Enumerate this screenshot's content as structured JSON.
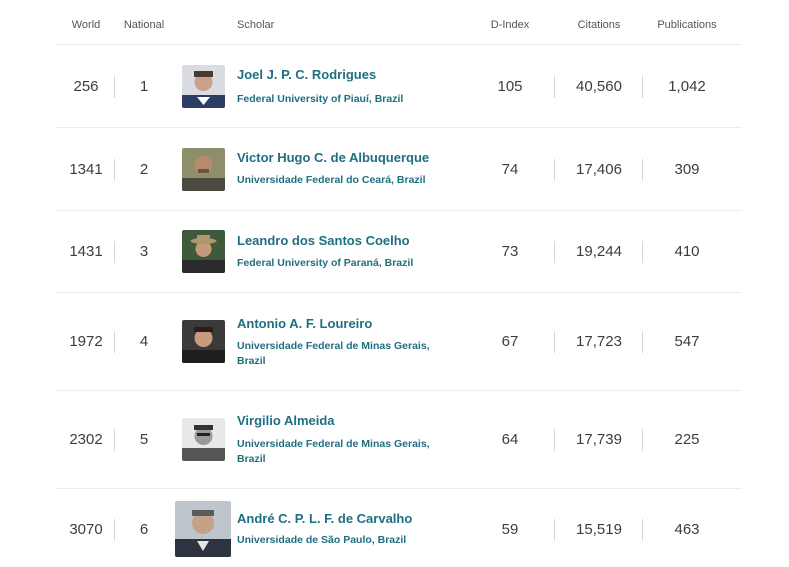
{
  "columns": {
    "world": "World",
    "national": "National",
    "scholar": "Scholar",
    "dindex": "D-Index",
    "citations": "Citations",
    "publications": "Publications"
  },
  "rows": [
    {
      "world": "256",
      "national": "1",
      "name": "Joel J. P. C. Rodrigues",
      "affiliation": "Federal University of Piauí, Brazil",
      "dindex": "105",
      "citations": "40,560",
      "publications": "1,042"
    },
    {
      "world": "1341",
      "national": "2",
      "name": "Victor Hugo C. de Albuquerque",
      "affiliation": "Universidade Federal do Ceará, Brazil",
      "dindex": "74",
      "citations": "17,406",
      "publications": "309"
    },
    {
      "world": "1431",
      "national": "3",
      "name": "Leandro dos Santos Coelho",
      "affiliation": "Federal University of Paraná, Brazil",
      "dindex": "73",
      "citations": "19,244",
      "publications": "410"
    },
    {
      "world": "1972",
      "national": "4",
      "name": "Antonio A. F. Loureiro",
      "affiliation": "Universidade Federal de Minas Gerais, Brazil",
      "dindex": "67",
      "citations": "17,723",
      "publications": "547"
    },
    {
      "world": "2302",
      "national": "5",
      "name": "Virgilio Almeida",
      "affiliation": "Universidade Federal de Minas Gerais, Brazil",
      "dindex": "64",
      "citations": "17,739",
      "publications": "225"
    },
    {
      "world": "3070",
      "national": "6",
      "name": "André C. P. L. F. de Carvalho",
      "affiliation": "Universidade de São Paulo, Brazil",
      "dindex": "59",
      "citations": "15,519",
      "publications": "463"
    }
  ]
}
